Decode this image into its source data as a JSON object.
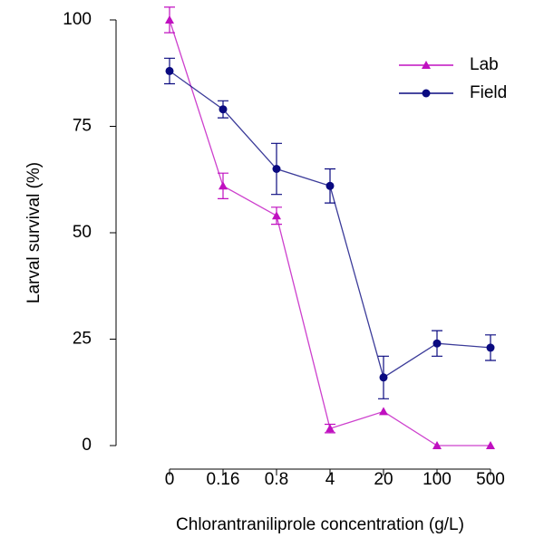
{
  "chart_data": {
    "type": "line",
    "xlabel": "Chlorantraniliprole concentration (g/L)",
    "ylabel": "Larval survival (%)",
    "categories": [
      "0",
      "0.16",
      "0.8",
      "4",
      "20",
      "100",
      "500"
    ],
    "series": [
      {
        "name": "Lab",
        "color": "#c010c0",
        "marker": "triangle",
        "values": [
          100,
          61,
          54,
          4,
          8,
          0,
          0
        ],
        "errors": [
          3,
          3,
          2,
          1,
          0,
          0,
          0
        ]
      },
      {
        "name": "Field",
        "color": "#0a0a80",
        "marker": "circle",
        "values": [
          88,
          79,
          65,
          61,
          16,
          24,
          23
        ],
        "errors": [
          3,
          2,
          6,
          4,
          5,
          3,
          3
        ]
      }
    ],
    "ylim": [
      0,
      100
    ],
    "yticks": [
      0,
      25,
      50,
      75,
      100
    ],
    "grid": false,
    "legend": "top-right"
  }
}
